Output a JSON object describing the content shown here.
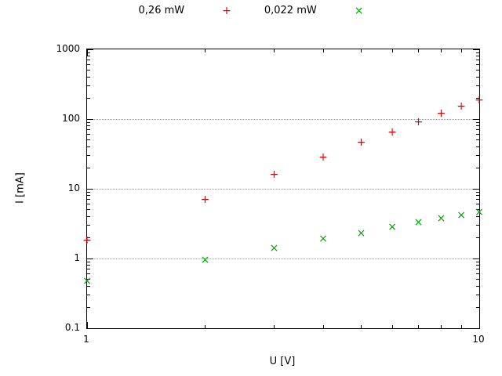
{
  "axes": {
    "x_label": "U [V]",
    "y_label": "I [mA]",
    "x_ticks": [
      {
        "label": "1",
        "value": 1
      },
      {
        "label": "10",
        "value": 10
      }
    ],
    "y_ticks": [
      {
        "label": "0.1",
        "value": 0.1
      },
      {
        "label": "1",
        "value": 1
      },
      {
        "label": "10",
        "value": 10
      },
      {
        "label": "100",
        "value": 100
      },
      {
        "label": "1000",
        "value": 1000
      }
    ]
  },
  "chart_data": {
    "type": "scatter",
    "title": "",
    "xlabel": "U [V]",
    "ylabel": "I [mA]",
    "x_scale": "log",
    "y_scale": "log",
    "xlim": [
      1,
      10
    ],
    "ylim": [
      0.1,
      1000
    ],
    "grid": "horizontal dotted lines at decades 1, 10, 100",
    "legend_position": "top-center",
    "x": [
      1,
      2,
      3,
      4,
      5,
      6,
      7,
      8,
      9,
      10
    ],
    "series": [
      {
        "name": "0,26 mW",
        "marker": "plus",
        "marker_glyph": "+",
        "color": "#e60000",
        "values": [
          1.8,
          7,
          16,
          28,
          46,
          65,
          90,
          120,
          150,
          185
        ]
      },
      {
        "name": "0,022 mW",
        "marker": "x",
        "marker_glyph": "×",
        "color": "#00a000",
        "values": [
          0.47,
          0.95,
          1.4,
          1.9,
          2.3,
          2.8,
          3.3,
          3.7,
          4.2,
          4.6
        ]
      }
    ]
  }
}
